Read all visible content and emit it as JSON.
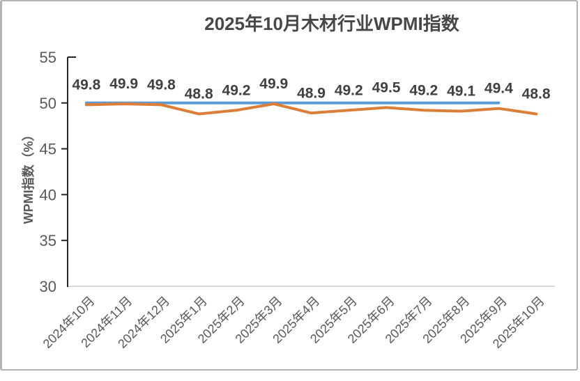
{
  "chart_data": {
    "type": "line",
    "title": "2025年10月木材行业WPMI指数",
    "ylabel": "WPMI指数（%）",
    "xlabel": "",
    "ylim": [
      30,
      55
    ],
    "yticks": [
      55,
      50,
      45,
      40,
      35,
      30
    ],
    "grid": "off",
    "legend": "none",
    "categories": [
      "2024年10月",
      "2024年11月",
      "2024年12月",
      "2025年1月",
      "2025年2月",
      "2025年3月",
      "2025年4月",
      "2025年5月",
      "2025年6月",
      "2025年7月",
      "2025年8月",
      "2025年9月",
      "2025年10月"
    ],
    "series": [
      {
        "name": "reference-line-50",
        "color": "#5b9bd5",
        "values": [
          50,
          50,
          50,
          50,
          50,
          50,
          50,
          50,
          50,
          50,
          50,
          50,
          null
        ],
        "show_labels": false
      },
      {
        "name": "wpmi-index",
        "color": "#dc7e38",
        "values": [
          49.8,
          49.9,
          49.8,
          48.8,
          49.2,
          49.9,
          48.9,
          49.2,
          49.5,
          49.2,
          49.1,
          49.4,
          48.8
        ],
        "labels": [
          "49.8",
          "49.9",
          "49.8",
          "48.8",
          "49.2",
          "49.9",
          "48.9",
          "49.2",
          "49.5",
          "49.2",
          "49.1",
          "49.4",
          "48.8"
        ],
        "show_labels": true
      }
    ],
    "colors": {
      "axis_line": "#262626",
      "baseline": "#d9d9d9",
      "tick_text": "#595959",
      "data_label_text": "#404040",
      "title_text": "#474747",
      "frame_border": "#b2b2b2",
      "background": "#ffffff"
    }
  }
}
